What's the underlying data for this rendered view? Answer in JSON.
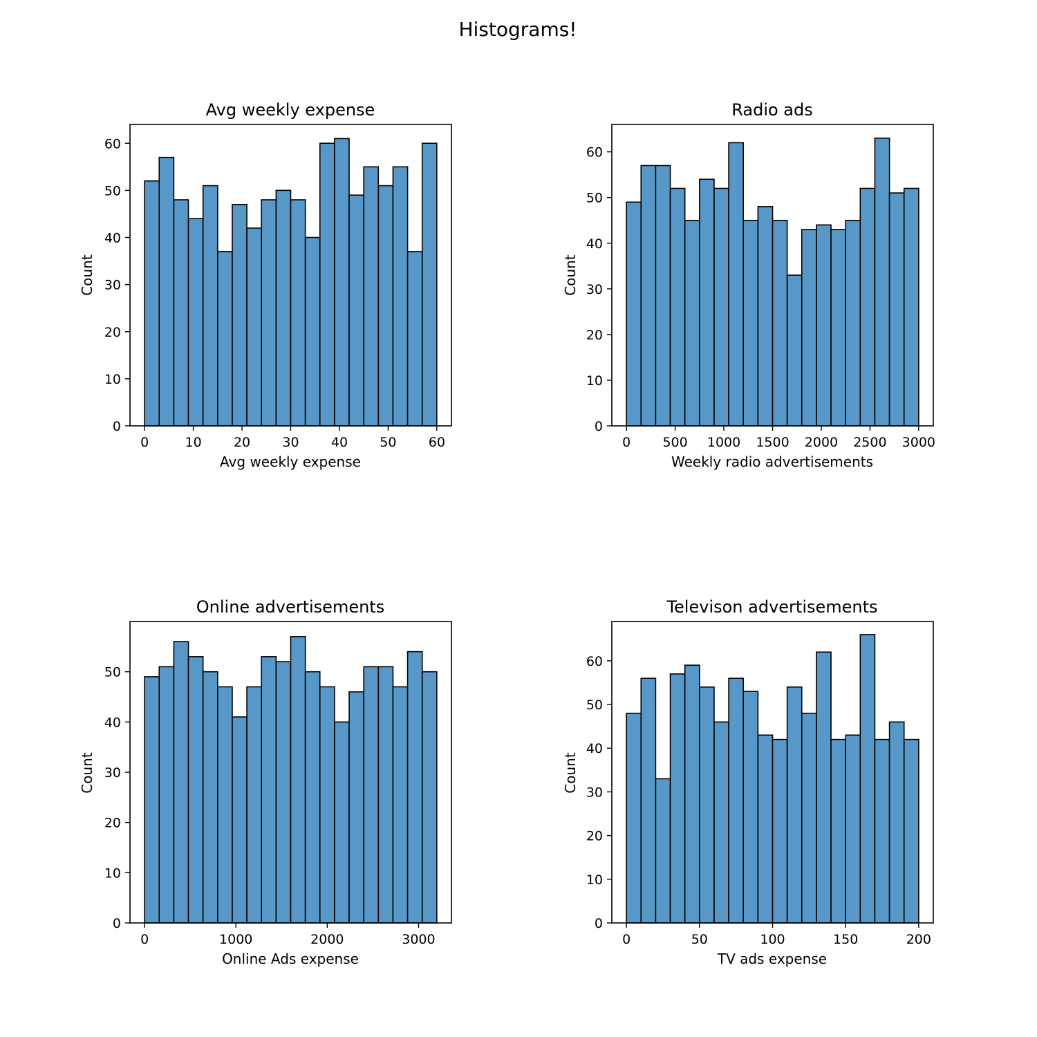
{
  "figure": {
    "suptitle": "Histograms!"
  },
  "chart_data": [
    {
      "type": "bar",
      "title": "Avg weekly expense",
      "xlabel": "Avg weekly expense",
      "ylabel": "Count",
      "bar_color": "#5898c8",
      "xlim": [
        -3,
        63
      ],
      "ylim": [
        0,
        64
      ],
      "xticks": [
        0,
        10,
        20,
        30,
        40,
        50,
        60
      ],
      "yticks": [
        0,
        10,
        20,
        30,
        40,
        50,
        60
      ],
      "bin_start": 0,
      "bin_end": 60,
      "values": [
        52,
        57,
        48,
        44,
        51,
        37,
        47,
        42,
        48,
        50,
        48,
        40,
        60,
        61,
        49,
        55,
        51,
        55,
        37,
        60
      ],
      "grid": false
    },
    {
      "type": "bar",
      "title": "Radio ads",
      "xlabel": "Weekly radio advertisements",
      "ylabel": "Count",
      "bar_color": "#5898c8",
      "xlim": [
        -150,
        3150
      ],
      "ylim": [
        0,
        66
      ],
      "xticks": [
        0,
        500,
        1000,
        1500,
        2000,
        2500,
        3000
      ],
      "yticks": [
        0,
        10,
        20,
        30,
        40,
        50,
        60
      ],
      "bin_start": 0,
      "bin_end": 3000,
      "values": [
        49,
        57,
        57,
        52,
        45,
        54,
        52,
        62,
        45,
        48,
        45,
        33,
        43,
        44,
        43,
        45,
        52,
        63,
        51,
        52
      ],
      "grid": false
    },
    {
      "type": "bar",
      "title": "Online advertisements",
      "xlabel": "Online Ads expense",
      "ylabel": "Count",
      "bar_color": "#5898c8",
      "xlim": [
        -160,
        3360
      ],
      "ylim": [
        0,
        60
      ],
      "xticks": [
        0,
        1000,
        2000,
        3000
      ],
      "yticks": [
        0,
        10,
        20,
        30,
        40,
        50
      ],
      "bin_start": 0,
      "bin_end": 3200,
      "values": [
        49,
        51,
        56,
        53,
        50,
        47,
        41,
        47,
        53,
        52,
        57,
        50,
        47,
        40,
        46,
        51,
        51,
        47,
        54,
        50
      ],
      "grid": false
    },
    {
      "type": "bar",
      "title": "Televison advertisements",
      "xlabel": "TV ads expense",
      "ylabel": "Count",
      "bar_color": "#5898c8",
      "xlim": [
        -10,
        210
      ],
      "ylim": [
        0,
        69
      ],
      "xticks": [
        0,
        50,
        100,
        150,
        200
      ],
      "yticks": [
        0,
        10,
        20,
        30,
        40,
        50,
        60
      ],
      "bin_start": 0,
      "bin_end": 200,
      "values": [
        48,
        56,
        33,
        57,
        59,
        54,
        46,
        56,
        53,
        43,
        42,
        54,
        48,
        62,
        42,
        43,
        66,
        42,
        46,
        42
      ],
      "grid": false
    }
  ]
}
